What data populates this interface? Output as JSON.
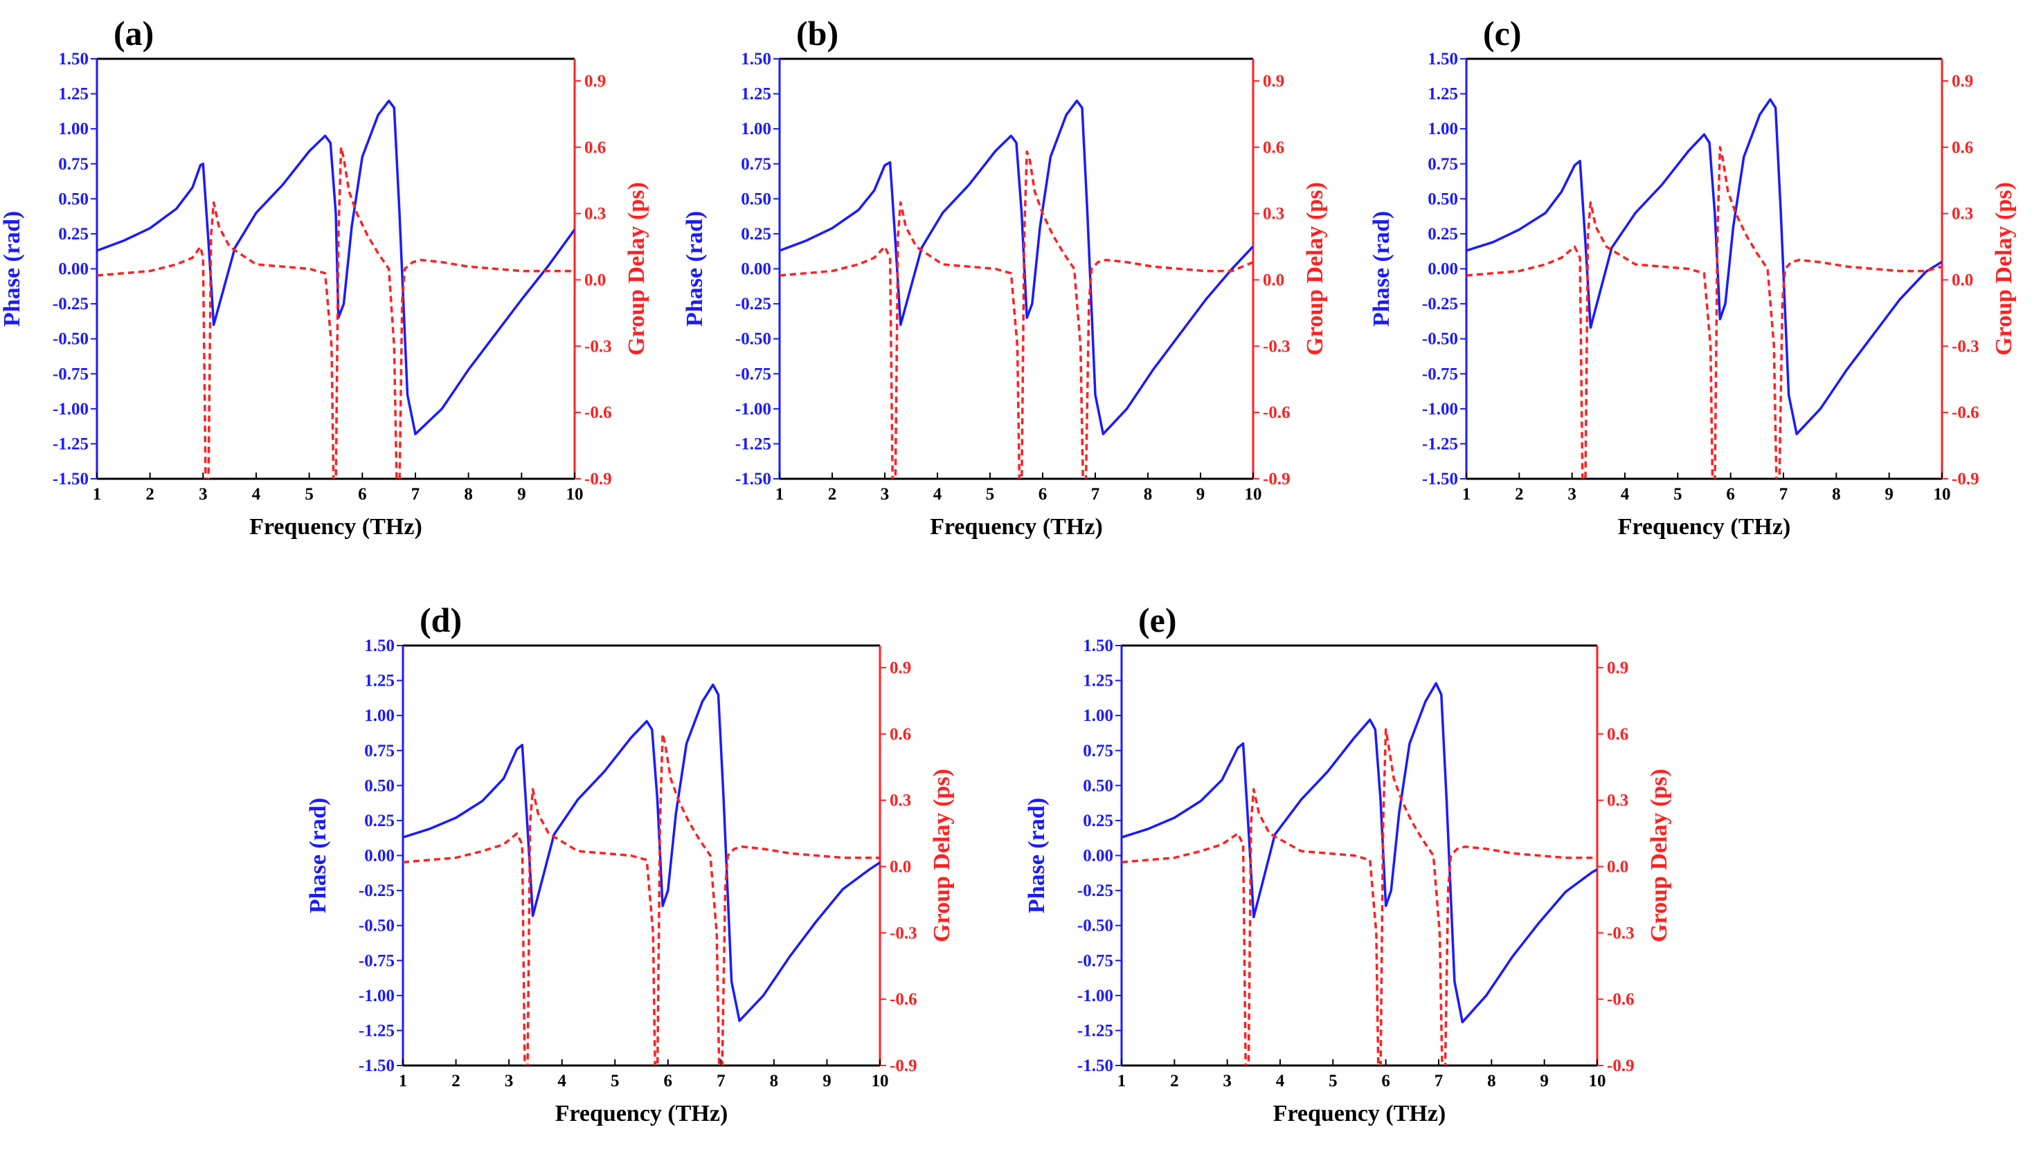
{
  "chart_data": [
    {
      "type": "line",
      "panel_label": "(a)",
      "xlabel": "Frequency (THz)",
      "ylabel_left": "Phase (rad)",
      "ylabel_right": "Group Delay (ps)",
      "xlim": [
        1,
        10
      ],
      "xticks": [
        1,
        2,
        3,
        4,
        5,
        6,
        7,
        8,
        9,
        10
      ],
      "ylim_left": [
        -1.5,
        1.5
      ],
      "yticks_left": [
        "-1.50",
        "-1.25",
        "-1.00",
        "-0.75",
        "-0.50",
        "-0.25",
        "0.00",
        "0.25",
        "0.50",
        "0.75",
        "1.00",
        "1.25",
        "1.50"
      ],
      "ylim_right": [
        -0.9,
        1.0
      ],
      "yticks_right": [
        "-0.9",
        "-0.6",
        "-0.3",
        "0.0",
        "0.3",
        "0.6",
        "0.9"
      ],
      "series": [
        {
          "name": "Phase",
          "axis": "left",
          "color": "#1a1aff",
          "style": "solid",
          "x": [
            1,
            1.5,
            2,
            2.5,
            2.8,
            2.95,
            3.0,
            3.1,
            3.2,
            3.6,
            4.0,
            4.5,
            5.0,
            5.3,
            5.4,
            5.5,
            5.55,
            5.65,
            5.8,
            6.0,
            6.3,
            6.5,
            6.6,
            6.7,
            6.85,
            7.0,
            7.5,
            8,
            8.5,
            9,
            9.5,
            10
          ],
          "values": [
            0.13,
            0.2,
            0.29,
            0.43,
            0.58,
            0.74,
            0.75,
            0.2,
            -0.4,
            0.15,
            0.4,
            0.6,
            0.84,
            0.95,
            0.9,
            0.4,
            -0.35,
            -0.25,
            0.3,
            0.8,
            1.1,
            1.2,
            1.15,
            0.4,
            -0.9,
            -1.18,
            -1.0,
            -0.72,
            -0.47,
            -0.22,
            0.02,
            0.28
          ]
        },
        {
          "name": "Group Delay",
          "axis": "right",
          "color": "#ff2020",
          "style": "dashed",
          "x": [
            1,
            1.5,
            2,
            2.5,
            2.8,
            2.95,
            3.0,
            3.05,
            3.1,
            3.15,
            3.2,
            3.3,
            3.5,
            4,
            4.5,
            5,
            5.3,
            5.42,
            5.46,
            5.5,
            5.55,
            5.6,
            5.65,
            5.75,
            5.9,
            6.1,
            6.3,
            6.5,
            6.6,
            6.65,
            6.7,
            6.75,
            6.8,
            6.95,
            7.1,
            7.5,
            8,
            8.5,
            9,
            9.5,
            10
          ],
          "values": [
            0.02,
            0.03,
            0.04,
            0.07,
            0.1,
            0.15,
            0.1,
            -0.95,
            -0.95,
            0.2,
            0.35,
            0.24,
            0.15,
            0.07,
            0.06,
            0.05,
            0.03,
            -0.3,
            -0.95,
            -0.95,
            0.2,
            0.6,
            0.55,
            0.4,
            0.3,
            0.2,
            0.12,
            0.05,
            -0.3,
            -0.95,
            -0.95,
            -0.1,
            0.05,
            0.08,
            0.09,
            0.08,
            0.06,
            0.05,
            0.04,
            0.04,
            0.04
          ]
        }
      ]
    },
    {
      "type": "line",
      "panel_label": "(b)",
      "xlabel": "Frequency (THz)",
      "ylabel_left": "Phase (rad)",
      "ylabel_right": "Group Delay (ps)",
      "xlim": [
        1,
        10
      ],
      "xticks": [
        1,
        2,
        3,
        4,
        5,
        6,
        7,
        8,
        9,
        10
      ],
      "ylim_left": [
        -1.5,
        1.5
      ],
      "yticks_left": [
        "-1.50",
        "-1.25",
        "-1.00",
        "-0.75",
        "-0.50",
        "-0.25",
        "0.00",
        "0.25",
        "0.50",
        "0.75",
        "1.00",
        "1.25",
        "1.50"
      ],
      "ylim_right": [
        -0.9,
        1.0
      ],
      "yticks_right": [
        "-0.9",
        "-0.6",
        "-0.3",
        "0.0",
        "0.3",
        "0.6",
        "0.9"
      ],
      "series": [
        {
          "name": "Phase",
          "axis": "left",
          "color": "#1a1aff",
          "style": "solid",
          "x": [
            1,
            1.5,
            2,
            2.5,
            2.8,
            3.0,
            3.1,
            3.2,
            3.3,
            3.7,
            4.1,
            4.6,
            5.1,
            5.4,
            5.5,
            5.6,
            5.7,
            5.8,
            5.95,
            6.15,
            6.45,
            6.65,
            6.75,
            6.85,
            7.0,
            7.15,
            7.6,
            8.1,
            8.6,
            9.1,
            9.6,
            10
          ],
          "values": [
            0.13,
            0.2,
            0.29,
            0.42,
            0.56,
            0.74,
            0.76,
            0.2,
            -0.4,
            0.15,
            0.4,
            0.6,
            0.84,
            0.95,
            0.9,
            0.4,
            -0.35,
            -0.25,
            0.3,
            0.8,
            1.1,
            1.2,
            1.15,
            0.4,
            -0.9,
            -1.18,
            -1.0,
            -0.72,
            -0.47,
            -0.22,
            0.0,
            0.16
          ]
        },
        {
          "name": "Group Delay",
          "axis": "right",
          "color": "#ff2020",
          "style": "dashed",
          "x": [
            1,
            1.5,
            2,
            2.5,
            2.8,
            3.0,
            3.1,
            3.15,
            3.2,
            3.25,
            3.3,
            3.4,
            3.6,
            4.1,
            4.6,
            5.1,
            5.4,
            5.52,
            5.56,
            5.6,
            5.65,
            5.7,
            5.75,
            5.85,
            6.0,
            6.2,
            6.4,
            6.6,
            6.72,
            6.77,
            6.82,
            6.88,
            6.93,
            7.05,
            7.2,
            7.6,
            8.1,
            8.6,
            9.1,
            9.6,
            10
          ],
          "values": [
            0.02,
            0.03,
            0.04,
            0.07,
            0.1,
            0.15,
            0.1,
            -0.95,
            -0.95,
            0.2,
            0.35,
            0.24,
            0.15,
            0.07,
            0.06,
            0.05,
            0.03,
            -0.3,
            -0.95,
            -0.95,
            0.2,
            0.58,
            0.55,
            0.4,
            0.3,
            0.2,
            0.12,
            0.05,
            -0.3,
            -0.95,
            -0.95,
            -0.1,
            0.05,
            0.08,
            0.09,
            0.08,
            0.06,
            0.05,
            0.04,
            0.04,
            0.08
          ]
        }
      ]
    },
    {
      "type": "line",
      "panel_label": "(c)",
      "xlabel": "Frequency (THz)",
      "ylabel_left": "Phase (rad)",
      "ylabel_right": "Group Delay (ps)",
      "xlim": [
        1,
        10
      ],
      "xticks": [
        1,
        2,
        3,
        4,
        5,
        6,
        7,
        8,
        9,
        10
      ],
      "ylim_left": [
        -1.5,
        1.5
      ],
      "yticks_left": [
        "-1.50",
        "-1.25",
        "-1.00",
        "-0.75",
        "-0.50",
        "-0.25",
        "0.00",
        "0.25",
        "0.50",
        "0.75",
        "1.00",
        "1.25",
        "1.50"
      ],
      "ylim_right": [
        -0.9,
        1.0
      ],
      "yticks_right": [
        "-0.9",
        "-0.6",
        "-0.3",
        "0.0",
        "0.3",
        "0.6",
        "0.9"
      ],
      "series": [
        {
          "name": "Phase",
          "axis": "left",
          "color": "#1a1aff",
          "style": "solid",
          "x": [
            1,
            1.5,
            2,
            2.5,
            2.8,
            3.05,
            3.15,
            3.25,
            3.35,
            3.75,
            4.2,
            4.7,
            5.2,
            5.5,
            5.6,
            5.7,
            5.8,
            5.9,
            6.05,
            6.25,
            6.55,
            6.75,
            6.85,
            6.95,
            7.1,
            7.25,
            7.7,
            8.2,
            8.7,
            9.2,
            9.7,
            10
          ],
          "values": [
            0.13,
            0.19,
            0.28,
            0.4,
            0.55,
            0.74,
            0.77,
            0.2,
            -0.42,
            0.15,
            0.4,
            0.6,
            0.84,
            0.96,
            0.9,
            0.4,
            -0.36,
            -0.25,
            0.3,
            0.8,
            1.1,
            1.21,
            1.15,
            0.4,
            -0.9,
            -1.18,
            -1.0,
            -0.72,
            -0.47,
            -0.22,
            -0.02,
            0.05
          ]
        },
        {
          "name": "Group Delay",
          "axis": "right",
          "color": "#ff2020",
          "style": "dashed",
          "x": [
            1,
            1.5,
            2,
            2.5,
            2.8,
            3.05,
            3.15,
            3.2,
            3.25,
            3.3,
            3.35,
            3.45,
            3.65,
            4.2,
            4.7,
            5.2,
            5.5,
            5.62,
            5.66,
            5.7,
            5.75,
            5.8,
            5.85,
            5.95,
            6.1,
            6.3,
            6.5,
            6.7,
            6.82,
            6.87,
            6.92,
            6.98,
            7.03,
            7.15,
            7.3,
            7.7,
            8.2,
            8.7,
            9.2,
            9.7,
            10
          ],
          "values": [
            0.02,
            0.03,
            0.04,
            0.07,
            0.1,
            0.15,
            0.1,
            -0.95,
            -0.95,
            0.2,
            0.35,
            0.24,
            0.15,
            0.07,
            0.06,
            0.05,
            0.03,
            -0.3,
            -0.95,
            -0.95,
            0.2,
            0.6,
            0.55,
            0.4,
            0.3,
            0.2,
            0.12,
            0.05,
            -0.3,
            -0.95,
            -0.95,
            -0.1,
            0.05,
            0.08,
            0.09,
            0.08,
            0.06,
            0.05,
            0.04,
            0.04,
            0.06
          ]
        }
      ]
    },
    {
      "type": "line",
      "panel_label": "(d)",
      "xlabel": "Frequency (THz)",
      "ylabel_left": "Phase (rad)",
      "ylabel_right": "Group Delay (ps)",
      "xlim": [
        1,
        10
      ],
      "xticks": [
        1,
        2,
        3,
        4,
        5,
        6,
        7,
        8,
        9,
        10
      ],
      "ylim_left": [
        -1.5,
        1.5
      ],
      "yticks_left": [
        "-1.50",
        "-1.25",
        "-1.00",
        "-0.75",
        "-0.50",
        "-0.25",
        "0.00",
        "0.25",
        "0.50",
        "0.75",
        "1.00",
        "1.25",
        "1.50"
      ],
      "ylim_right": [
        -0.9,
        1.0
      ],
      "yticks_right": [
        "-0.9",
        "-0.6",
        "-0.3",
        "0.0",
        "0.3",
        "0.6",
        "0.9"
      ],
      "series": [
        {
          "name": "Phase",
          "axis": "left",
          "color": "#1a1aff",
          "style": "solid",
          "x": [
            1,
            1.5,
            2,
            2.5,
            2.9,
            3.15,
            3.25,
            3.35,
            3.45,
            3.85,
            4.3,
            4.8,
            5.3,
            5.6,
            5.7,
            5.8,
            5.9,
            6.0,
            6.15,
            6.35,
            6.65,
            6.85,
            6.95,
            7.05,
            7.2,
            7.35,
            7.8,
            8.3,
            8.8,
            9.3,
            9.8,
            10
          ],
          "values": [
            0.13,
            0.19,
            0.27,
            0.39,
            0.55,
            0.76,
            0.79,
            0.2,
            -0.43,
            0.15,
            0.4,
            0.6,
            0.84,
            0.96,
            0.9,
            0.4,
            -0.36,
            -0.25,
            0.3,
            0.8,
            1.1,
            1.22,
            1.15,
            0.4,
            -0.9,
            -1.18,
            -1.0,
            -0.72,
            -0.47,
            -0.24,
            -0.1,
            -0.05
          ]
        },
        {
          "name": "Group Delay",
          "axis": "right",
          "color": "#ff2020",
          "style": "dashed",
          "x": [
            1,
            1.5,
            2,
            2.5,
            2.9,
            3.15,
            3.25,
            3.3,
            3.35,
            3.4,
            3.45,
            3.55,
            3.75,
            4.3,
            4.8,
            5.3,
            5.6,
            5.72,
            5.76,
            5.8,
            5.85,
            5.9,
            5.95,
            6.05,
            6.2,
            6.4,
            6.6,
            6.8,
            6.92,
            6.97,
            7.02,
            7.08,
            7.13,
            7.25,
            7.4,
            7.8,
            8.3,
            8.8,
            9.3,
            9.8,
            10
          ],
          "values": [
            0.02,
            0.03,
            0.04,
            0.07,
            0.1,
            0.15,
            0.1,
            -0.95,
            -0.95,
            0.2,
            0.35,
            0.24,
            0.15,
            0.07,
            0.06,
            0.05,
            0.03,
            -0.3,
            -0.95,
            -0.95,
            0.2,
            0.6,
            0.55,
            0.4,
            0.3,
            0.2,
            0.12,
            0.05,
            -0.3,
            -0.95,
            -0.95,
            -0.1,
            0.05,
            0.08,
            0.09,
            0.08,
            0.06,
            0.05,
            0.04,
            0.04,
            0.04
          ]
        }
      ]
    },
    {
      "type": "line",
      "panel_label": "(e)",
      "xlabel": "Frequency (THz)",
      "ylabel_left": "Phase (rad)",
      "ylabel_right": "Group Delay (ps)",
      "xlim": [
        1,
        10
      ],
      "xticks": [
        1,
        2,
        3,
        4,
        5,
        6,
        7,
        8,
        9,
        10
      ],
      "ylim_left": [
        -1.5,
        1.5
      ],
      "yticks_left": [
        "-1.50",
        "-1.25",
        "-1.00",
        "-0.75",
        "-0.50",
        "-0.25",
        "0.00",
        "0.25",
        "0.50",
        "0.75",
        "1.00",
        "1.25",
        "1.50"
      ],
      "ylim_right": [
        -0.9,
        1.0
      ],
      "yticks_right": [
        "-0.9",
        "-0.6",
        "-0.3",
        "0.0",
        "0.3",
        "0.6",
        "0.9"
      ],
      "series": [
        {
          "name": "Phase",
          "axis": "left",
          "color": "#1a1aff",
          "style": "solid",
          "x": [
            1,
            1.5,
            2,
            2.5,
            2.9,
            3.2,
            3.3,
            3.4,
            3.5,
            3.9,
            4.4,
            4.9,
            5.4,
            5.7,
            5.8,
            5.9,
            6.0,
            6.1,
            6.25,
            6.45,
            6.75,
            6.95,
            7.05,
            7.15,
            7.3,
            7.45,
            7.9,
            8.4,
            8.9,
            9.4,
            9.9,
            10
          ],
          "values": [
            0.13,
            0.19,
            0.27,
            0.39,
            0.54,
            0.77,
            0.8,
            0.2,
            -0.44,
            0.15,
            0.4,
            0.6,
            0.84,
            0.97,
            0.9,
            0.4,
            -0.36,
            -0.25,
            0.3,
            0.8,
            1.1,
            1.23,
            1.15,
            0.4,
            -0.9,
            -1.19,
            -1.0,
            -0.72,
            -0.48,
            -0.26,
            -0.12,
            -0.1
          ]
        },
        {
          "name": "Group Delay",
          "axis": "right",
          "color": "#ff2020",
          "style": "dashed",
          "x": [
            1,
            1.5,
            2,
            2.5,
            2.9,
            3.2,
            3.3,
            3.35,
            3.4,
            3.45,
            3.5,
            3.6,
            3.8,
            4.4,
            4.9,
            5.4,
            5.7,
            5.82,
            5.86,
            5.9,
            5.95,
            6.0,
            6.05,
            6.15,
            6.3,
            6.5,
            6.7,
            6.9,
            7.02,
            7.07,
            7.12,
            7.18,
            7.23,
            7.35,
            7.5,
            7.9,
            8.4,
            8.9,
            9.4,
            9.9,
            10
          ],
          "values": [
            0.02,
            0.03,
            0.04,
            0.07,
            0.1,
            0.15,
            0.1,
            -0.95,
            -0.95,
            0.2,
            0.35,
            0.24,
            0.15,
            0.07,
            0.06,
            0.05,
            0.03,
            -0.3,
            -0.95,
            -0.95,
            0.2,
            0.62,
            0.55,
            0.4,
            0.3,
            0.2,
            0.12,
            0.05,
            -0.3,
            -0.95,
            -0.95,
            -0.1,
            0.05,
            0.08,
            0.09,
            0.08,
            0.06,
            0.05,
            0.04,
            0.04,
            0.04
          ]
        }
      ]
    }
  ]
}
